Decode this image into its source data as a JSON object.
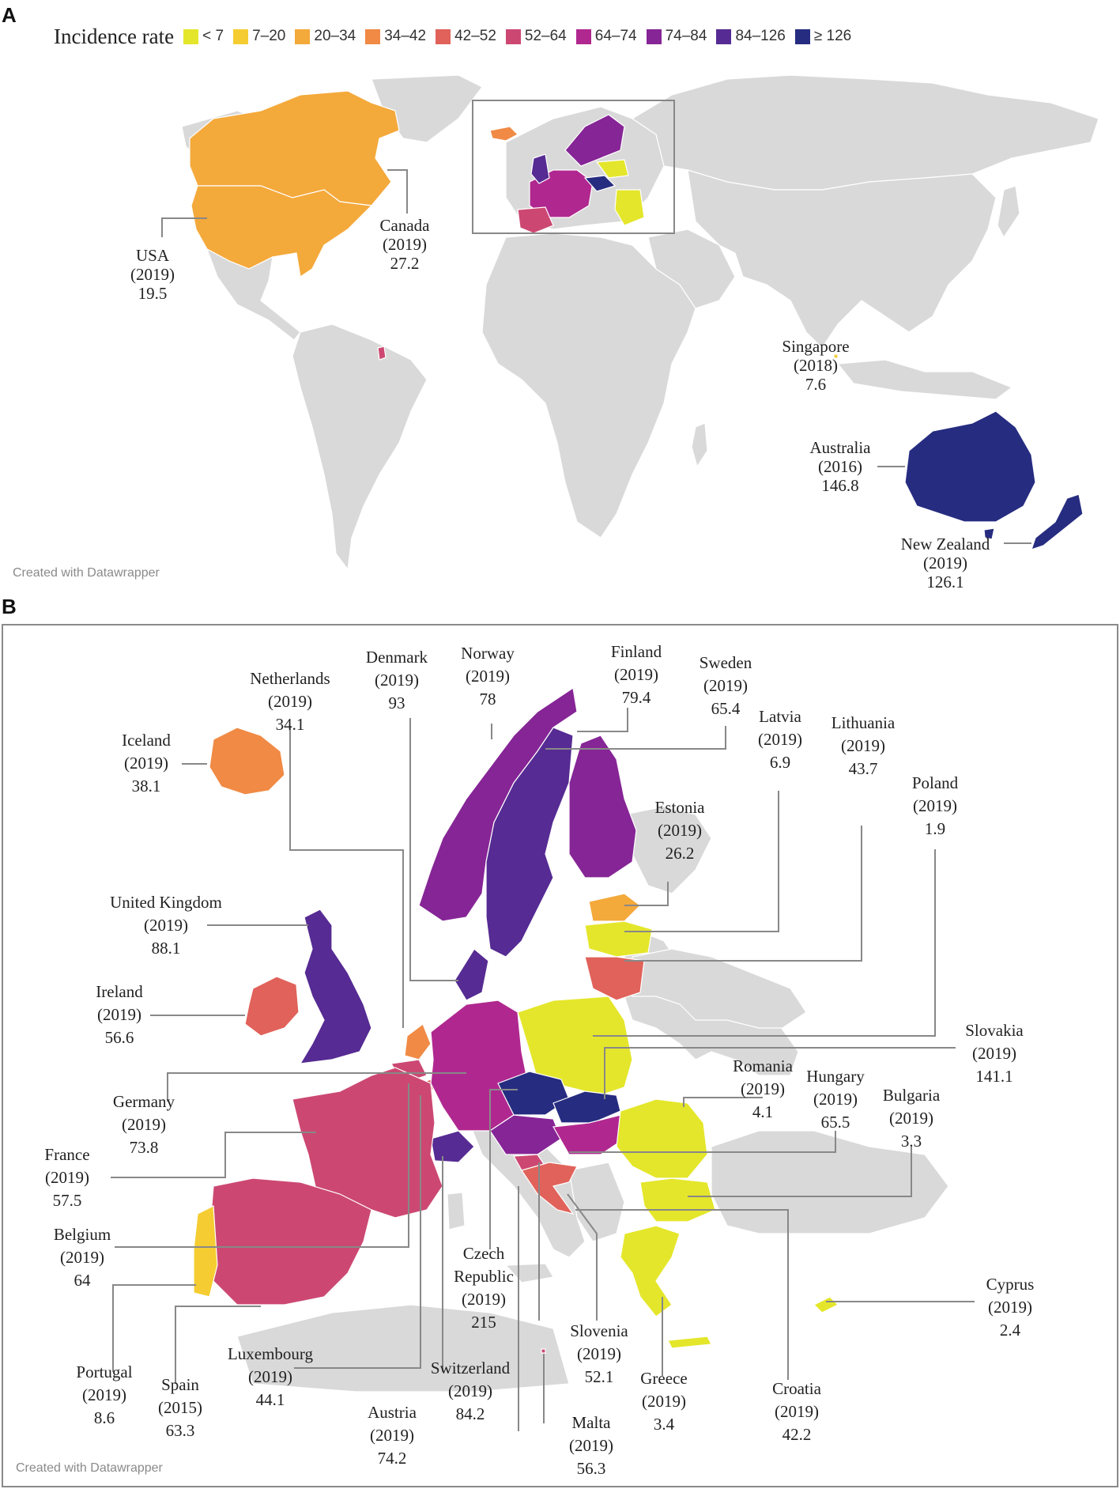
{
  "panels": {
    "a": "A",
    "b": "B"
  },
  "legend": {
    "title": "Incidence rate",
    "items": [
      {
        "label": "< 7",
        "color": "#e4e62b"
      },
      {
        "label": "7–20",
        "color": "#f5cd32"
      },
      {
        "label": "20–34",
        "color": "#f4a93b"
      },
      {
        "label": "34–42",
        "color": "#f08a45"
      },
      {
        "label": "42–52",
        "color": "#e0625a"
      },
      {
        "label": "52–64",
        "color": "#cc4873"
      },
      {
        "label": "64–74",
        "color": "#b0288f"
      },
      {
        "label": "74–84",
        "color": "#862596"
      },
      {
        "label": "84–126",
        "color": "#562b93"
      },
      {
        "label": "≥ 126",
        "color": "#262c80"
      }
    ]
  },
  "credit": "Created with Datawrapper",
  "world_labels": [
    {
      "name": "USA",
      "year": "(2019)",
      "rate": "19.5"
    },
    {
      "name": "Canada",
      "year": "(2019)",
      "rate": "27.2"
    },
    {
      "name": "Singapore",
      "year": "(2018)",
      "rate": "7.6"
    },
    {
      "name": "Australia",
      "year": "(2016)",
      "rate": "146.8"
    },
    {
      "name": "New Zealand",
      "year": "(2019)",
      "rate": "126.1"
    }
  ],
  "europe_labels": [
    {
      "name": "Iceland",
      "year": "(2019)",
      "rate": "38.1"
    },
    {
      "name": "Netherlands",
      "year": "(2019)",
      "rate": "34.1"
    },
    {
      "name": "Denmark",
      "year": "(2019)",
      "rate": "93"
    },
    {
      "name": "Norway",
      "year": "(2019)",
      "rate": "78"
    },
    {
      "name": "Finland",
      "year": "(2019)",
      "rate": "79.4"
    },
    {
      "name": "Sweden",
      "year": "(2019)",
      "rate": "65.4"
    },
    {
      "name": "Latvia",
      "year": "(2019)",
      "rate": "6.9"
    },
    {
      "name": "Lithuania",
      "year": "(2019)",
      "rate": "43.7"
    },
    {
      "name": "Poland",
      "year": "(2019)",
      "rate": "1.9"
    },
    {
      "name": "Estonia",
      "year": "(2019)",
      "rate": "26.2"
    },
    {
      "name": "United Kingdom",
      "year": "(2019)",
      "rate": "88.1"
    },
    {
      "name": "Ireland",
      "year": "(2019)",
      "rate": "56.6"
    },
    {
      "name": "Slovakia",
      "year": "(2019)",
      "rate": "141.1"
    },
    {
      "name": "Romania",
      "year": "(2019)",
      "rate": "4.1"
    },
    {
      "name": "Hungary",
      "year": "(2019)",
      "rate": "65.5"
    },
    {
      "name": "Bulgaria",
      "year": "(2019)",
      "rate": "3.3"
    },
    {
      "name": "Germany",
      "year": "(2019)",
      "rate": "73.8"
    },
    {
      "name": "France",
      "year": "(2019)",
      "rate": "57.5"
    },
    {
      "name": "Belgium",
      "year": "(2019)",
      "rate": "64"
    },
    {
      "name": "Czech Republic",
      "year": "(2019)",
      "rate": "215"
    },
    {
      "name": "Cyprus",
      "year": "(2019)",
      "rate": "2.4"
    },
    {
      "name": "Portugal",
      "year": "(2019)",
      "rate": "8.6"
    },
    {
      "name": "Spain",
      "year": "(2015)",
      "rate": "63.3"
    },
    {
      "name": "Luxembourg",
      "year": "(2019)",
      "rate": "44.1"
    },
    {
      "name": "Switzerland",
      "year": "(2019)",
      "rate": "84.2"
    },
    {
      "name": "Slovenia",
      "year": "(2019)",
      "rate": "52.1"
    },
    {
      "name": "Greece",
      "year": "(2019)",
      "rate": "3.4"
    },
    {
      "name": "Croatia",
      "year": "(2019)",
      "rate": "42.2"
    },
    {
      "name": "Austria",
      "year": "(2019)",
      "rate": "74.2"
    },
    {
      "name": "Malta",
      "year": "(2019)",
      "rate": "56.3"
    }
  ]
}
